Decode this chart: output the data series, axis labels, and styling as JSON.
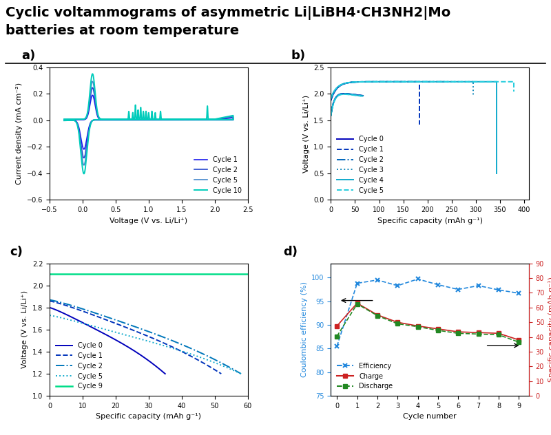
{
  "title_line1": "Cyclic voltammograms of asymmetric Li|LiBH4·CH3NH2|Mo",
  "title_line2": "batteries at room temperature",
  "title_fontsize": 14,
  "bg_color": "#ffffff",
  "panel_a": {
    "xlabel": "Voltage (V vs. Li/Li⁺)",
    "ylabel": "Current density (mA cm⁻²)",
    "xlim": [
      -0.5,
      2.5
    ],
    "ylim": [
      -0.6,
      0.4
    ],
    "yticks": [
      -0.6,
      -0.4,
      -0.2,
      0.0,
      0.2,
      0.4
    ],
    "xticks": [
      -0.5,
      0.0,
      0.5,
      1.0,
      1.5,
      2.0,
      2.5
    ],
    "colors": {
      "Cycle 1": "#1a1aee",
      "Cycle 2": "#2244cc",
      "Cycle 5": "#4488cc",
      "Cycle 10": "#00ccbb"
    }
  },
  "panel_b": {
    "xlabel": "Specific capacity (mAh g⁻¹)",
    "ylabel": "Voltage (V vs. Li/Li⁺)",
    "xlim": [
      0,
      410
    ],
    "ylim": [
      0.0,
      2.5
    ],
    "yticks": [
      0.0,
      0.5,
      1.0,
      1.5,
      2.0,
      2.5
    ],
    "xticks": [
      0,
      50,
      100,
      150,
      200,
      250,
      300,
      350,
      400
    ],
    "cycles": {
      "Cycle 0": {
        "color": "#0000bb",
        "ls": "-",
        "lw": 1.4
      },
      "Cycle 1": {
        "color": "#0033bb",
        "ls": "--",
        "lw": 1.4
      },
      "Cycle 2": {
        "color": "#0066bb",
        "ls": "-.",
        "lw": 1.4
      },
      "Cycle 3": {
        "color": "#1188bb",
        "ls": ":",
        "lw": 1.4
      },
      "Cycle 4": {
        "color": "#11aacc",
        "ls": "-",
        "lw": 1.4
      },
      "Cycle 5": {
        "color": "#22ccdd",
        "ls": "--",
        "lw": 1.4
      }
    }
  },
  "panel_c": {
    "xlabel": "Specific capacity (mAh g⁻¹)",
    "ylabel": "Voltage (V vs. Li/Li⁺)",
    "xlim": [
      0,
      60
    ],
    "ylim": [
      1.0,
      2.2
    ],
    "yticks": [
      1.0,
      1.2,
      1.4,
      1.6,
      1.8,
      2.0,
      2.2
    ],
    "xticks": [
      0,
      10,
      20,
      30,
      40,
      50,
      60
    ],
    "cycles": {
      "Cycle 0": {
        "color": "#0000bb",
        "ls": "-",
        "lw": 1.4
      },
      "Cycle 1": {
        "color": "#0033bb",
        "ls": "--",
        "lw": 1.4
      },
      "Cycle 2": {
        "color": "#0077bb",
        "ls": "-.",
        "lw": 1.4
      },
      "Cycle 5": {
        "color": "#11aacc",
        "ls": ":",
        "lw": 1.4
      },
      "Cycle 9": {
        "color": "#00dd88",
        "ls": "-",
        "lw": 1.8
      }
    }
  },
  "panel_d": {
    "xlabel": "Cycle number",
    "ylabel_left": "Coulombic efficiency (%)",
    "ylabel_right": "Specific capacity (mAh g⁻¹)",
    "xlim": [
      -0.3,
      9.5
    ],
    "ylim_left": [
      75,
      103
    ],
    "ylim_right": [
      0,
      90
    ],
    "yticks_left": [
      75,
      80,
      85,
      90,
      95,
      100
    ],
    "yticks_right": [
      0,
      10,
      20,
      30,
      40,
      50,
      60,
      70,
      80,
      90
    ],
    "xticks": [
      0,
      1,
      2,
      3,
      4,
      5,
      6,
      7,
      8,
      9
    ],
    "eff_color": "#2288dd",
    "charge_color": "#cc2222",
    "discharge_color": "#228822"
  }
}
